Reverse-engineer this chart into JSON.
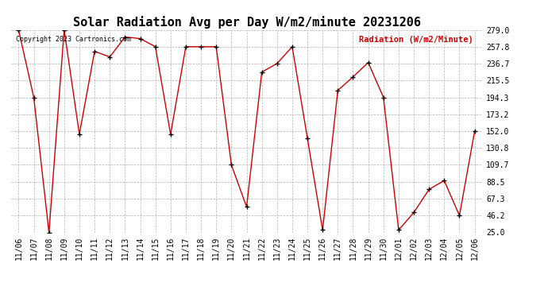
{
  "title": "Solar Radiation Avg per Day W/m2/minute 20231206",
  "copyright_text": "Copyright 2023 Cartronics.com",
  "legend_text": "Radiation (W/m2/Minute)",
  "dates": [
    "11/06",
    "11/07",
    "11/08",
    "11/09",
    "11/10",
    "11/11",
    "11/12",
    "11/13",
    "11/14",
    "11/15",
    "11/16",
    "11/17",
    "11/18",
    "11/19",
    "11/20",
    "11/21",
    "11/22",
    "11/23",
    "11/24",
    "11/25",
    "11/26",
    "11/27",
    "11/28",
    "11/29",
    "11/30",
    "12/01",
    "12/02",
    "12/03",
    "12/04",
    "12/05",
    "12/06"
  ],
  "values": [
    279.0,
    194.3,
    25.0,
    279.0,
    148.0,
    252.0,
    245.0,
    270.0,
    268.0,
    257.8,
    148.0,
    257.8,
    257.8,
    257.8,
    109.7,
    57.0,
    226.0,
    236.7,
    257.8,
    143.0,
    28.0,
    203.0,
    220.0,
    238.0,
    194.3,
    28.0,
    50.0,
    79.0,
    90.0,
    46.2,
    152.0
  ],
  "yticks": [
    25.0,
    46.2,
    67.3,
    88.5,
    109.7,
    130.8,
    152.0,
    173.2,
    194.3,
    215.5,
    236.7,
    257.8,
    279.0
  ],
  "ylim": [
    25.0,
    279.0
  ],
  "line_color": "#cc0000",
  "marker_color": "#000000",
  "background_color": "#ffffff",
  "grid_color": "#b0b0b0",
  "title_fontsize": 11,
  "axis_fontsize": 7,
  "legend_color": "#cc0000",
  "copyright_color": "#000000"
}
